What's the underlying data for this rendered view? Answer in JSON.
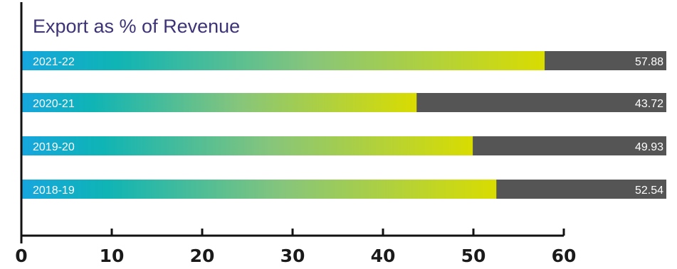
{
  "chart_data": {
    "type": "bar",
    "orientation": "horizontal",
    "title": "Export as % of Revenue",
    "categories": [
      "2021-22",
      "2020-21",
      "2019-20",
      "2018-19"
    ],
    "values": [
      57.88,
      43.72,
      49.93,
      52.54
    ],
    "x_ticks": [
      0,
      10,
      20,
      30,
      40,
      50,
      60
    ],
    "xlim": [
      0,
      60
    ],
    "grid": false,
    "legend": "none",
    "colors": {
      "gradient_start": "#16a6de",
      "gradient_mid": "#0fb4b5",
      "gradient_green": "#86c57c",
      "gradient_end": "#d9dc00",
      "track": "#555555",
      "axis": "#111111"
    }
  }
}
